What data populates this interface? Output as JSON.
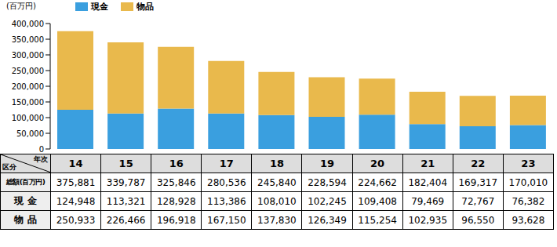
{
  "chart_data": {
    "type": "bar",
    "stacked": true,
    "ylabel": "(百万円)",
    "categories": [
      "14",
      "15",
      "16",
      "17",
      "18",
      "19",
      "20",
      "21",
      "22",
      "23"
    ],
    "series": [
      {
        "name": "現金",
        "color": "#3a9fdf",
        "values": [
          124948,
          113321,
          128928,
          113386,
          108010,
          102245,
          109408,
          79469,
          72767,
          76382
        ]
      },
      {
        "name": "物品",
        "color": "#e9b94c",
        "values": [
          250933,
          226466,
          196918,
          167150,
          137830,
          126349,
          115254,
          102935,
          96550,
          93628
        ]
      }
    ],
    "ylim": [
      0,
      400000
    ],
    "yticks": [
      0,
      {
        "value": 50000,
        "label": "50,000"
      },
      {
        "value": 100000,
        "label": "100,000"
      },
      {
        "value": 150000,
        "label": "150,000"
      },
      {
        "value": 200000,
        "label": "200,000"
      },
      {
        "value": 250000,
        "label": "250,000"
      },
      {
        "value": 300000,
        "label": "300,000"
      },
      {
        "value": 350000,
        "label": "350,000"
      },
      {
        "value": 400000,
        "label": "400,000"
      }
    ],
    "grid": false,
    "legend": "top"
  },
  "table": {
    "corner": {
      "top": "年次",
      "bottom": "区分"
    },
    "rows": [
      {
        "label": "総額(百万円)",
        "cells": [
          "375,881",
          "339,787",
          "325,846",
          "280,536",
          "245,840",
          "228,594",
          "224,662",
          "182,404",
          "169,317",
          "170,010"
        ]
      },
      {
        "label": "現 金",
        "cells": [
          "124,948",
          "113,321",
          "128,928",
          "113,386",
          "108,010",
          "102,245",
          "109,408",
          "79,469",
          "72,767",
          "76,382"
        ]
      },
      {
        "label": "物 品",
        "cells": [
          "250,933",
          "226,466",
          "196,918",
          "167,150",
          "137,830",
          "126,349",
          "115,254",
          "102,935",
          "96,550",
          "93,628"
        ]
      }
    ]
  }
}
